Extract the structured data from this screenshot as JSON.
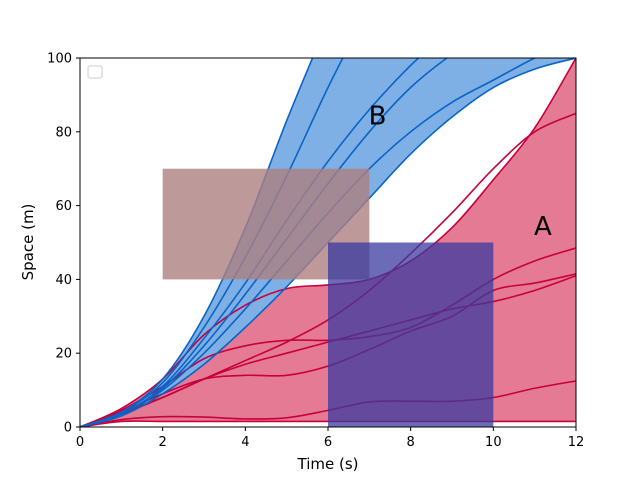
{
  "chart_data": {
    "type": "line",
    "title": "",
    "xlabel": "Time (s)",
    "ylabel": "Space (m)",
    "xlim": [
      0,
      12
    ],
    "ylim": [
      0,
      100
    ],
    "xticks": [
      0,
      2,
      4,
      6,
      8,
      10,
      12
    ],
    "yticks": [
      0,
      20,
      40,
      60,
      80,
      100
    ],
    "grid": false,
    "legend": {
      "location": "upper-left",
      "entries": []
    },
    "colors": {
      "region_a_fill": "#e47a93",
      "region_a_line": "#c8003c",
      "region_b_fill": "#7eb0e6",
      "region_b_line": "#0a64c8",
      "rect_upper": "#ad7f7f",
      "rect_lower": "#3a3aa0"
    },
    "annotations": [
      {
        "text": "A",
        "x": 11.2,
        "y": 52
      },
      {
        "text": "B",
        "x": 7.2,
        "y": 82
      }
    ],
    "rectangles": [
      {
        "name": "upper-rectangle",
        "x": [
          2,
          7
        ],
        "y": [
          40,
          70
        ],
        "opacity": 0.8,
        "color": "rect_upper"
      },
      {
        "name": "lower-rectangle",
        "x": [
          6,
          10
        ],
        "y": [
          0,
          50
        ],
        "opacity": 0.75,
        "color": "rect_lower"
      }
    ],
    "bands": [
      {
        "name": "A",
        "color": "region_a",
        "x": [
          0,
          1,
          2,
          3,
          4,
          5,
          6,
          7,
          8,
          9,
          10,
          11,
          12
        ],
        "lower": [
          0,
          1.5,
          1.5,
          1.5,
          1.5,
          1.5,
          1.5,
          1.5,
          1.5,
          1.5,
          1.5,
          1.5,
          1.5
        ],
        "upper": [
          0,
          5,
          13,
          25,
          33,
          37.5,
          38.5,
          40,
          45,
          54,
          67,
          81,
          100
        ]
      },
      {
        "name": "B",
        "color": "region_b",
        "x": [
          0,
          1,
          2,
          3,
          4,
          5,
          6,
          7,
          8,
          9,
          10,
          11,
          12
        ],
        "lower": [
          0,
          3,
          9,
          17,
          27,
          38,
          50,
          62,
          74,
          84,
          92,
          97,
          100
        ],
        "upper": [
          0,
          4,
          13,
          30,
          54,
          83,
          110,
          null,
          null,
          null,
          null,
          null,
          null
        ]
      }
    ],
    "series": [
      {
        "group": "A",
        "x": [
          0,
          1,
          2,
          3,
          4,
          5,
          6,
          7,
          8,
          9,
          10,
          11,
          12
        ],
        "y": [
          0,
          1.5,
          1.5,
          1.5,
          1.5,
          1.5,
          1.5,
          1.5,
          1.5,
          1.5,
          1.5,
          1.5,
          1.5
        ]
      },
      {
        "group": "A",
        "x": [
          0,
          1,
          2,
          3,
          4,
          5,
          6,
          7,
          8,
          9,
          10,
          11,
          12
        ],
        "y": [
          0,
          2,
          2.8,
          2.7,
          2.2,
          2.5,
          4.5,
          6.8,
          7,
          7,
          8,
          10.5,
          12.5
        ]
      },
      {
        "group": "A",
        "x": [
          0,
          1,
          2,
          3,
          4,
          5,
          6,
          7,
          8,
          9,
          10,
          11,
          12
        ],
        "y": [
          0,
          4,
          9,
          13,
          14,
          14,
          16.5,
          21,
          26,
          30,
          37,
          39,
          41.5
        ]
      },
      {
        "group": "A",
        "x": [
          0,
          1,
          2,
          3,
          4,
          5,
          6,
          7,
          8,
          9,
          10,
          11,
          12
        ],
        "y": [
          0,
          4.5,
          11,
          18.5,
          22,
          23.5,
          23.5,
          24.5,
          27,
          33,
          40,
          45,
          48.5
        ]
      },
      {
        "group": "A",
        "x": [
          0,
          1,
          2,
          3,
          4,
          5,
          6,
          7,
          8,
          9,
          10,
          11,
          12
        ],
        "y": [
          0,
          4,
          8,
          13,
          17,
          20,
          23,
          26,
          29,
          32,
          34,
          37,
          41
        ]
      },
      {
        "group": "A",
        "x": [
          0,
          1,
          2,
          3,
          4,
          5,
          6,
          7,
          8,
          9,
          10,
          11,
          12
        ],
        "y": [
          0,
          3.5,
          8,
          13,
          18,
          23,
          29,
          37,
          47,
          58,
          70,
          80,
          85
        ]
      },
      {
        "group": "A",
        "x": [
          0,
          1,
          2,
          3,
          4,
          5,
          6,
          7,
          8,
          9,
          10,
          11,
          12
        ],
        "y": [
          0,
          5,
          13,
          25,
          33,
          37.5,
          38.5,
          40,
          45,
          54,
          67,
          81,
          100
        ]
      },
      {
        "group": "B",
        "x": [
          0,
          1,
          2,
          3,
          4,
          5,
          6,
          7,
          8,
          9,
          10,
          11,
          12
        ],
        "y": [
          0,
          3,
          9,
          17,
          27,
          38,
          50,
          62,
          74,
          84,
          92,
          97,
          100
        ]
      },
      {
        "group": "B",
        "x": [
          0,
          1,
          2,
          3,
          4,
          5,
          6,
          7,
          8,
          9,
          10,
          11,
          12
        ],
        "y": [
          0,
          3.5,
          10,
          20,
          32,
          45,
          58,
          70,
          80,
          88,
          94,
          100,
          105
        ]
      },
      {
        "group": "B",
        "x": [
          0,
          1,
          2,
          3,
          4,
          5,
          6,
          7,
          8,
          9,
          10
        ],
        "y": [
          0,
          3.5,
          10.5,
          22,
          36,
          51,
          66,
          80,
          92,
          101,
          108
        ]
      },
      {
        "group": "B",
        "x": [
          0,
          1,
          2,
          3,
          4,
          5,
          6,
          7,
          8,
          9
        ],
        "y": [
          0,
          3.5,
          11,
          24,
          39,
          56,
          72,
          86,
          98,
          108
        ]
      },
      {
        "group": "B",
        "x": [
          0,
          1,
          2,
          3,
          4,
          5,
          6,
          7
        ],
        "y": [
          0,
          4,
          12,
          27,
          46,
          68,
          92,
          114
        ]
      },
      {
        "group": "B",
        "x": [
          0,
          1,
          2,
          3,
          4,
          5,
          6
        ],
        "y": [
          0,
          4,
          13,
          30,
          54,
          83,
          110
        ]
      }
    ]
  }
}
